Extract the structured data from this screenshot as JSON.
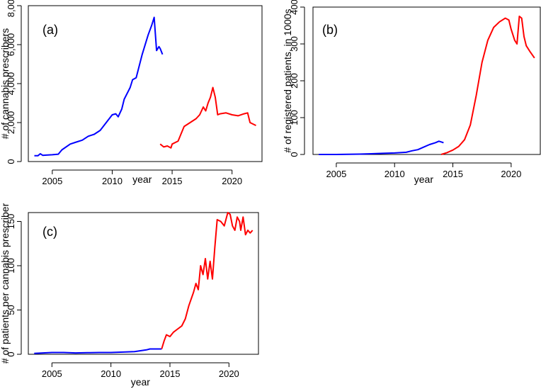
{
  "chart_data": [
    {
      "panel": "(a)",
      "type": "line",
      "xlabel": "year",
      "ylabel": "# of cannabis prescribers",
      "xlim": [
        2003,
        2022.5
      ],
      "ylim": [
        0,
        8000
      ],
      "xticks": [
        2005,
        2010,
        2015,
        2020
      ],
      "xtick_labels": [
        "2005",
        "2010",
        "2015",
        "2020"
      ],
      "yticks": [
        0,
        2000,
        4000,
        6000,
        8000
      ],
      "ytick_labels": [
        "0",
        "2,000",
        "4,000",
        "6,000",
        "8,000"
      ],
      "series": [
        {
          "color": "#0000ff",
          "points": [
            [
              2003.5,
              300
            ],
            [
              2003.8,
              300
            ],
            [
              2004.0,
              400
            ],
            [
              2004.2,
              320
            ],
            [
              2004.5,
              330
            ],
            [
              2005.0,
              350
            ],
            [
              2005.5,
              380
            ],
            [
              2005.8,
              600
            ],
            [
              2006.5,
              900
            ],
            [
              2007.0,
              1000
            ],
            [
              2007.5,
              1100
            ],
            [
              2008.0,
              1300
            ],
            [
              2008.5,
              1400
            ],
            [
              2009.0,
              1600
            ],
            [
              2009.5,
              2000
            ],
            [
              2010.0,
              2400
            ],
            [
              2010.3,
              2450
            ],
            [
              2010.5,
              2300
            ],
            [
              2010.8,
              2700
            ],
            [
              2011.0,
              3200
            ],
            [
              2011.5,
              3800
            ],
            [
              2011.7,
              4200
            ],
            [
              2012.0,
              4300
            ],
            [
              2012.5,
              5500
            ],
            [
              2013.0,
              6500
            ],
            [
              2013.3,
              7000
            ],
            [
              2013.5,
              7400
            ],
            [
              2013.7,
              5700
            ],
            [
              2013.9,
              5900
            ],
            [
              2014.0,
              5800
            ],
            [
              2014.2,
              5500
            ]
          ]
        },
        {
          "color": "#ff0000",
          "points": [
            [
              2014.0,
              900
            ],
            [
              2014.3,
              750
            ],
            [
              2014.6,
              800
            ],
            [
              2014.9,
              700
            ],
            [
              2015.0,
              900
            ],
            [
              2015.5,
              1050
            ],
            [
              2016.0,
              1800
            ],
            [
              2016.5,
              2000
            ],
            [
              2017.0,
              2200
            ],
            [
              2017.3,
              2400
            ],
            [
              2017.6,
              2800
            ],
            [
              2017.8,
              2600
            ],
            [
              2018.0,
              3000
            ],
            [
              2018.2,
              3300
            ],
            [
              2018.4,
              3800
            ],
            [
              2018.6,
              3300
            ],
            [
              2018.8,
              2400
            ],
            [
              2019.0,
              2450
            ],
            [
              2019.5,
              2500
            ],
            [
              2020.0,
              2400
            ],
            [
              2020.5,
              2350
            ],
            [
              2021.0,
              2450
            ],
            [
              2021.3,
              2500
            ],
            [
              2021.5,
              2000
            ],
            [
              2022.0,
              1850
            ]
          ]
        }
      ]
    },
    {
      "panel": "(b)",
      "type": "line",
      "xlabel": "year",
      "ylabel": "# of registered patients, in 1000s",
      "xlim": [
        2003,
        2022.5
      ],
      "ylim": [
        0,
        400
      ],
      "xticks": [
        2005,
        2010,
        2015,
        2020
      ],
      "xtick_labels": [
        "2005",
        "2010",
        "2015",
        "2020"
      ],
      "yticks": [
        0,
        100,
        200,
        300,
        400
      ],
      "ytick_labels": [
        "0",
        "100",
        "200",
        "300",
        "400"
      ],
      "series": [
        {
          "color": "#0000ff",
          "points": [
            [
              2003.5,
              0
            ],
            [
              2005.0,
              0
            ],
            [
              2006.0,
              0.5
            ],
            [
              2007.0,
              1
            ],
            [
              2008.0,
              2
            ],
            [
              2009.0,
              3
            ],
            [
              2010.0,
              4
            ],
            [
              2010.5,
              5
            ],
            [
              2011.0,
              6
            ],
            [
              2011.5,
              10
            ],
            [
              2012.0,
              13
            ],
            [
              2012.5,
              20
            ],
            [
              2013.0,
              27
            ],
            [
              2013.5,
              32
            ],
            [
              2013.8,
              36
            ],
            [
              2014.0,
              34
            ],
            [
              2014.2,
              32
            ]
          ]
        },
        {
          "color": "#ff0000",
          "points": [
            [
              2014.0,
              0
            ],
            [
              2014.5,
              5
            ],
            [
              2015.0,
              12
            ],
            [
              2015.5,
              22
            ],
            [
              2016.0,
              40
            ],
            [
              2016.5,
              80
            ],
            [
              2017.0,
              160
            ],
            [
              2017.5,
              250
            ],
            [
              2018.0,
              310
            ],
            [
              2018.5,
              345
            ],
            [
              2019.0,
              360
            ],
            [
              2019.5,
              370
            ],
            [
              2019.8,
              365
            ],
            [
              2020.0,
              340
            ],
            [
              2020.3,
              310
            ],
            [
              2020.5,
              300
            ],
            [
              2020.7,
              375
            ],
            [
              2020.9,
              370
            ],
            [
              2021.1,
              320
            ],
            [
              2021.3,
              295
            ],
            [
              2021.6,
              280
            ],
            [
              2022.0,
              262
            ]
          ]
        }
      ]
    },
    {
      "panel": "(c)",
      "type": "line",
      "xlabel": "year",
      "ylabel": "# of patients per cannabis prescriber",
      "xlim": [
        2003,
        2022.5
      ],
      "ylim": [
        0,
        160
      ],
      "xticks": [
        2005,
        2010,
        2015,
        2020
      ],
      "xtick_labels": [
        "2005",
        "2010",
        "2015",
        "2020"
      ],
      "yticks": [
        0,
        50,
        100,
        150
      ],
      "ytick_labels": [
        "0",
        "50",
        "100",
        "150"
      ],
      "series": [
        {
          "color": "#0000ff",
          "points": [
            [
              2003.5,
              1
            ],
            [
              2005.0,
              2
            ],
            [
              2006.0,
              2
            ],
            [
              2007.0,
              1.5
            ],
            [
              2008.0,
              1.8
            ],
            [
              2009.0,
              2
            ],
            [
              2010.0,
              2
            ],
            [
              2011.0,
              2.5
            ],
            [
              2012.0,
              3
            ],
            [
              2013.0,
              5
            ],
            [
              2013.3,
              6
            ],
            [
              2014.0,
              6
            ],
            [
              2014.3,
              6
            ]
          ]
        },
        {
          "color": "#ff0000",
          "points": [
            [
              2014.3,
              6
            ],
            [
              2014.5,
              15
            ],
            [
              2014.7,
              22
            ],
            [
              2015.0,
              20
            ],
            [
              2015.3,
              25
            ],
            [
              2015.6,
              28
            ],
            [
              2016.0,
              32
            ],
            [
              2016.3,
              40
            ],
            [
              2016.6,
              55
            ],
            [
              2017.0,
              70
            ],
            [
              2017.2,
              80
            ],
            [
              2017.4,
              73
            ],
            [
              2017.6,
              100
            ],
            [
              2017.8,
              90
            ],
            [
              2018.0,
              108
            ],
            [
              2018.2,
              85
            ],
            [
              2018.4,
              105
            ],
            [
              2018.6,
              85
            ],
            [
              2018.8,
              120
            ],
            [
              2019.0,
              152
            ],
            [
              2019.3,
              150
            ],
            [
              2019.6,
              145
            ],
            [
              2019.9,
              160
            ],
            [
              2020.1,
              158
            ],
            [
              2020.3,
              145
            ],
            [
              2020.5,
              140
            ],
            [
              2020.7,
              155
            ],
            [
              2020.9,
              150
            ],
            [
              2021.0,
              140
            ],
            [
              2021.2,
              155
            ],
            [
              2021.4,
              135
            ],
            [
              2021.6,
              140
            ],
            [
              2021.8,
              137
            ],
            [
              2022.0,
              140
            ]
          ]
        }
      ]
    }
  ]
}
